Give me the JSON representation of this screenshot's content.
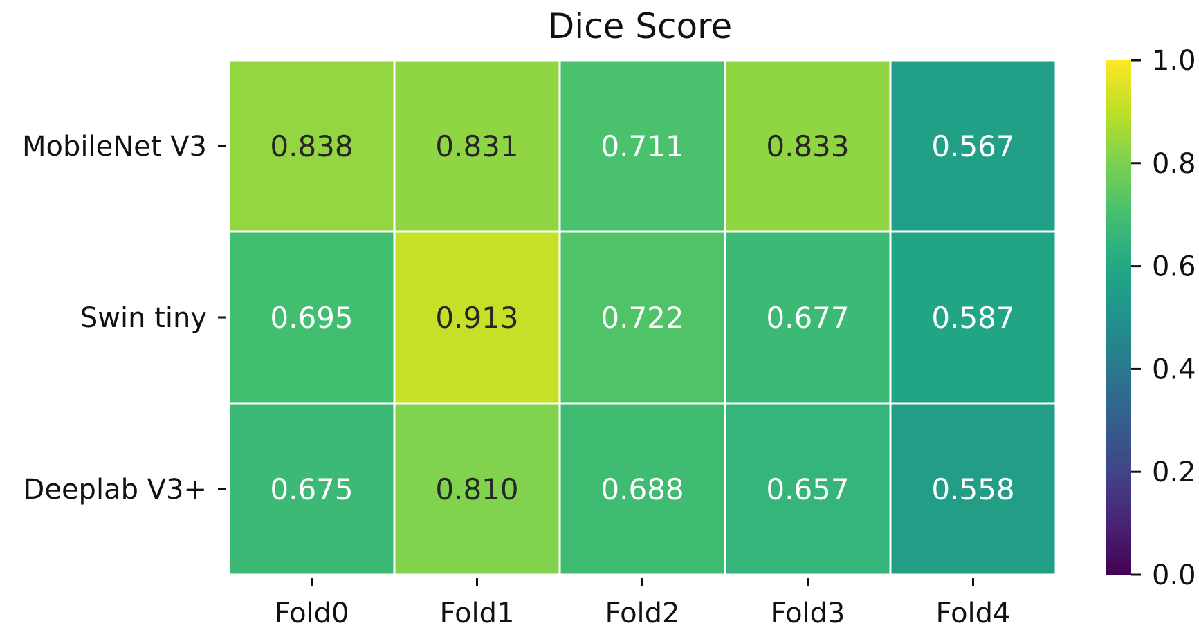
{
  "chart_data": {
    "type": "heatmap",
    "title": "Dice Score",
    "rows": [
      "MobileNet V3",
      "Swin tiny",
      "Deeplab V3+"
    ],
    "columns": [
      "Fold0",
      "Fold1",
      "Fold2",
      "Fold3",
      "Fold4"
    ],
    "values": [
      [
        0.838,
        0.831,
        0.711,
        0.833,
        0.567
      ],
      [
        0.695,
        0.913,
        0.722,
        0.677,
        0.587
      ],
      [
        0.675,
        0.81,
        0.688,
        0.657,
        0.558
      ]
    ],
    "value_labels": [
      [
        "0.838",
        "0.831",
        "0.711",
        "0.833",
        "0.567"
      ],
      [
        "0.695",
        "0.913",
        "0.722",
        "0.677",
        "0.587"
      ],
      [
        "0.675",
        "0.810",
        "0.688",
        "0.657",
        "0.558"
      ]
    ],
    "vmin": 0.0,
    "vmax": 1.0,
    "colormap": "viridis",
    "colorbar": {
      "ticks": [
        0.0,
        0.2,
        0.4,
        0.6,
        0.8,
        1.0
      ],
      "tick_labels": [
        "0.0",
        "0.2",
        "0.4",
        "0.6",
        "0.8",
        "1.0"
      ]
    },
    "grid": false,
    "annotation_colors": {
      "dark": "#262626",
      "light": "#ffffff"
    },
    "cell_border_color": "#ffffff"
  }
}
